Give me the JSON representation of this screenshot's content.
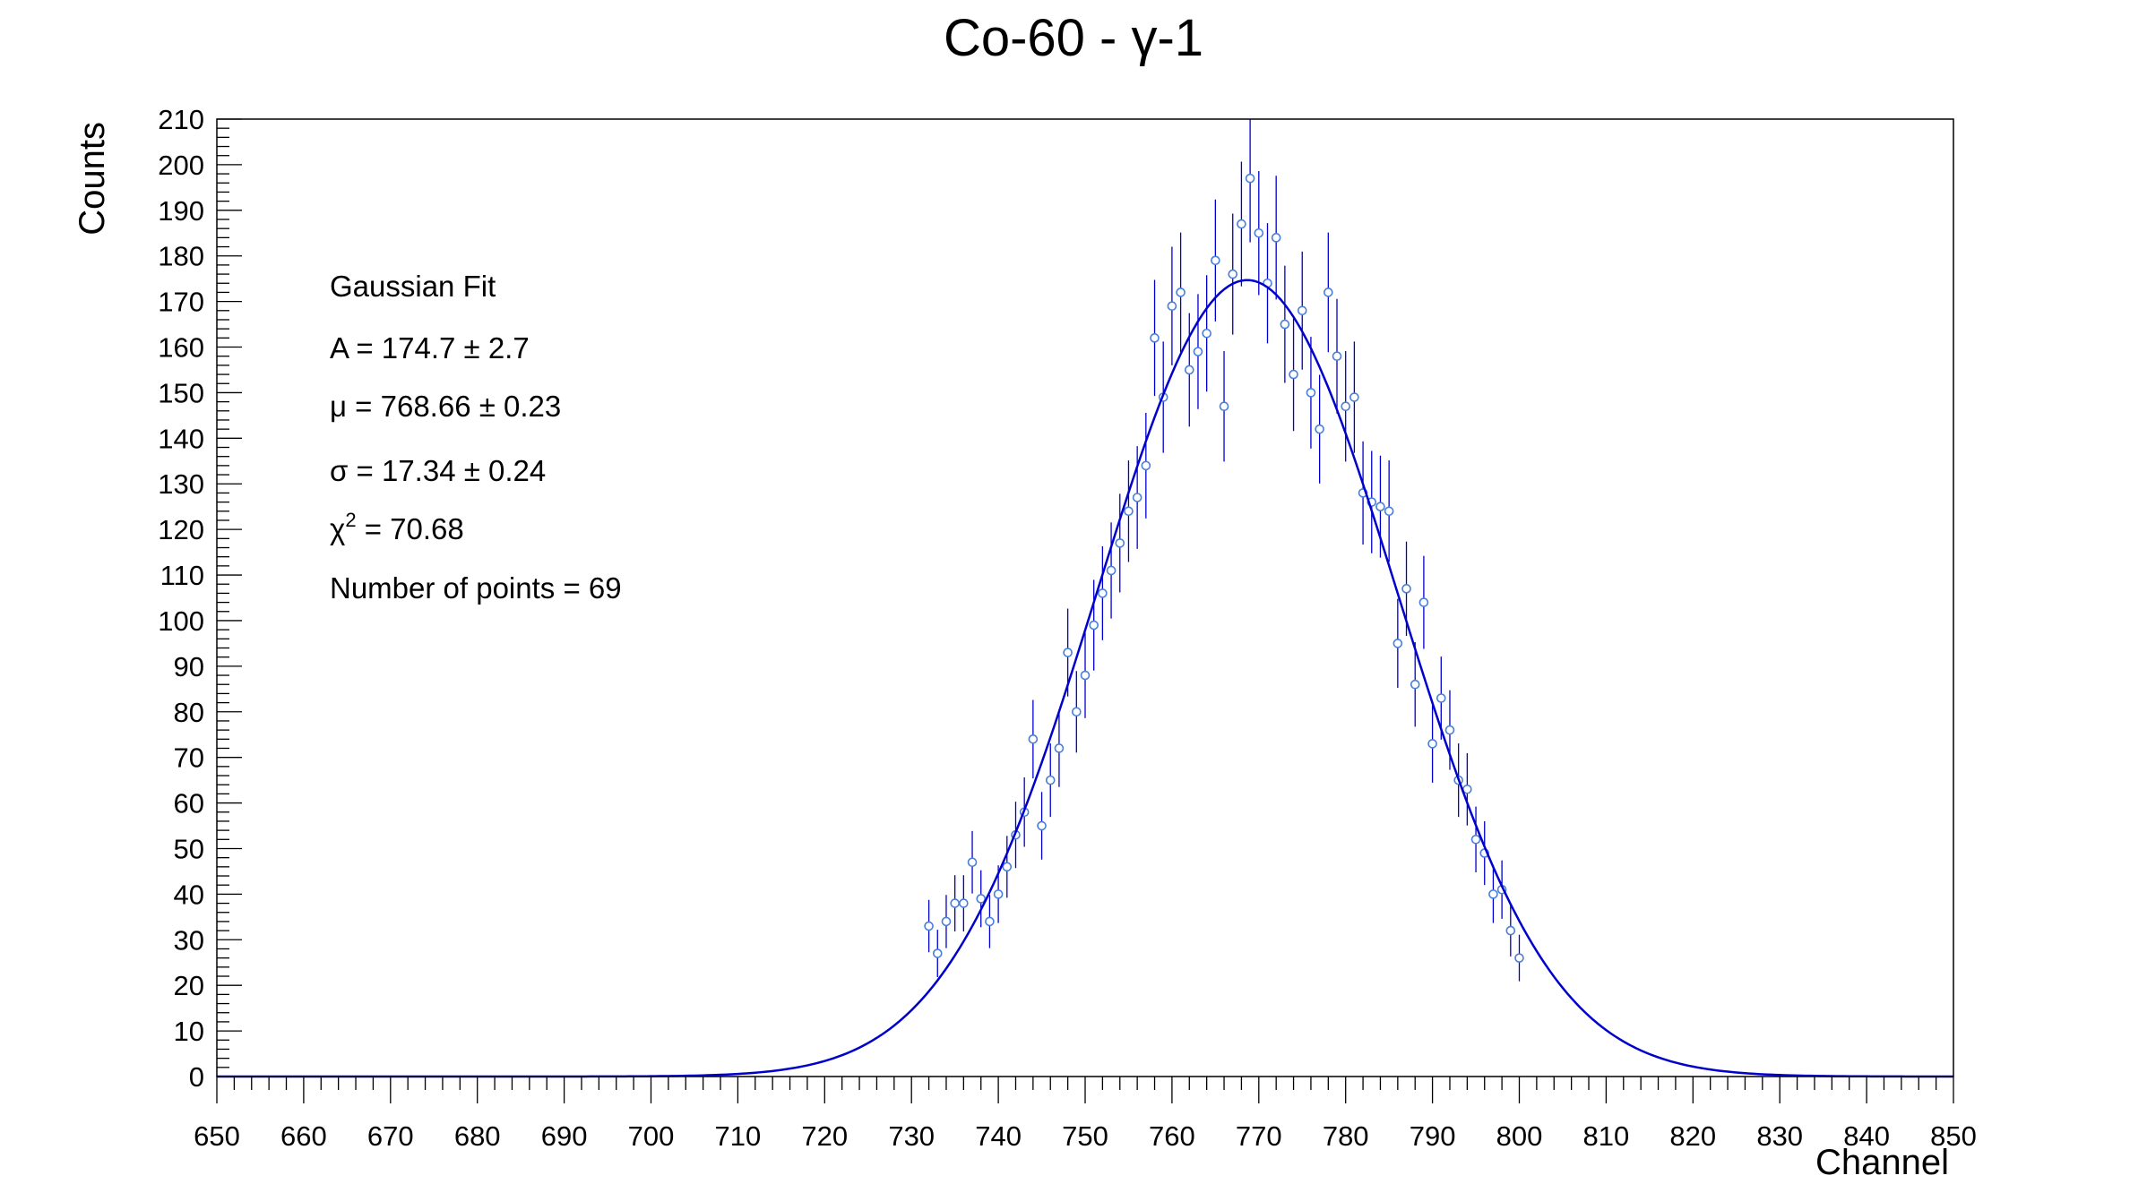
{
  "chart_data": {
    "type": "scatter",
    "title": "Co-60 - γ-1",
    "xlabel": "Channel",
    "ylabel": "Counts",
    "xlim": [
      650,
      850
    ],
    "ylim": [
      0,
      210
    ],
    "x_major_ticks": [
      650,
      660,
      670,
      680,
      690,
      700,
      710,
      720,
      730,
      740,
      750,
      760,
      770,
      780,
      790,
      800,
      810,
      820,
      830,
      840,
      850
    ],
    "y_major_ticks": [
      0,
      10,
      20,
      30,
      40,
      50,
      60,
      70,
      80,
      90,
      100,
      110,
      120,
      130,
      140,
      150,
      160,
      170,
      180,
      190,
      200,
      210
    ],
    "grid": false,
    "legend": false,
    "colors": {
      "points": "#4a7fd9",
      "fit": "#0000cc",
      "frame": "#000000"
    },
    "series": [
      {
        "kind": "points-with-error-bars",
        "x": [
          732,
          733,
          734,
          735,
          736,
          737,
          738,
          739,
          740,
          741,
          742,
          743,
          744,
          745,
          746,
          747,
          748,
          749,
          750,
          751,
          752,
          753,
          754,
          755,
          756,
          757,
          758,
          759,
          760,
          761,
          762,
          763,
          764,
          765,
          766,
          767,
          768,
          769,
          770,
          771,
          772,
          773,
          774,
          775,
          776,
          777,
          778,
          779,
          780,
          781,
          782,
          783,
          784,
          785,
          786,
          787,
          788,
          789,
          790,
          791,
          792,
          793,
          794,
          795,
          796,
          797,
          798,
          799,
          800
        ],
        "y": [
          33,
          27,
          34,
          38,
          38,
          47,
          39,
          34,
          40,
          46,
          53,
          58,
          74,
          55,
          65,
          72,
          93,
          80,
          88,
          99,
          106,
          111,
          117,
          124,
          127,
          134,
          162,
          149,
          169,
          172,
          155,
          159,
          163,
          179,
          147,
          176,
          187,
          197,
          185,
          174,
          184,
          165,
          154,
          168,
          150,
          142,
          172,
          158,
          147,
          149,
          128,
          126,
          125,
          124,
          95,
          107,
          86,
          104,
          73,
          83,
          76,
          65,
          63,
          52,
          49,
          40,
          41,
          32,
          26
        ]
      },
      {
        "kind": "fit-curve",
        "function": "gaussian",
        "A": 174.7,
        "mu": 768.66,
        "sigma": 17.34
      }
    ],
    "annotations": [
      "Gaussian Fit",
      "A = 174.7 ± 2.7",
      "μ = 768.66 ± 0.23",
      "σ = 17.34 ± 0.24",
      "χ² = 70.68",
      "Number of points = 69"
    ]
  }
}
